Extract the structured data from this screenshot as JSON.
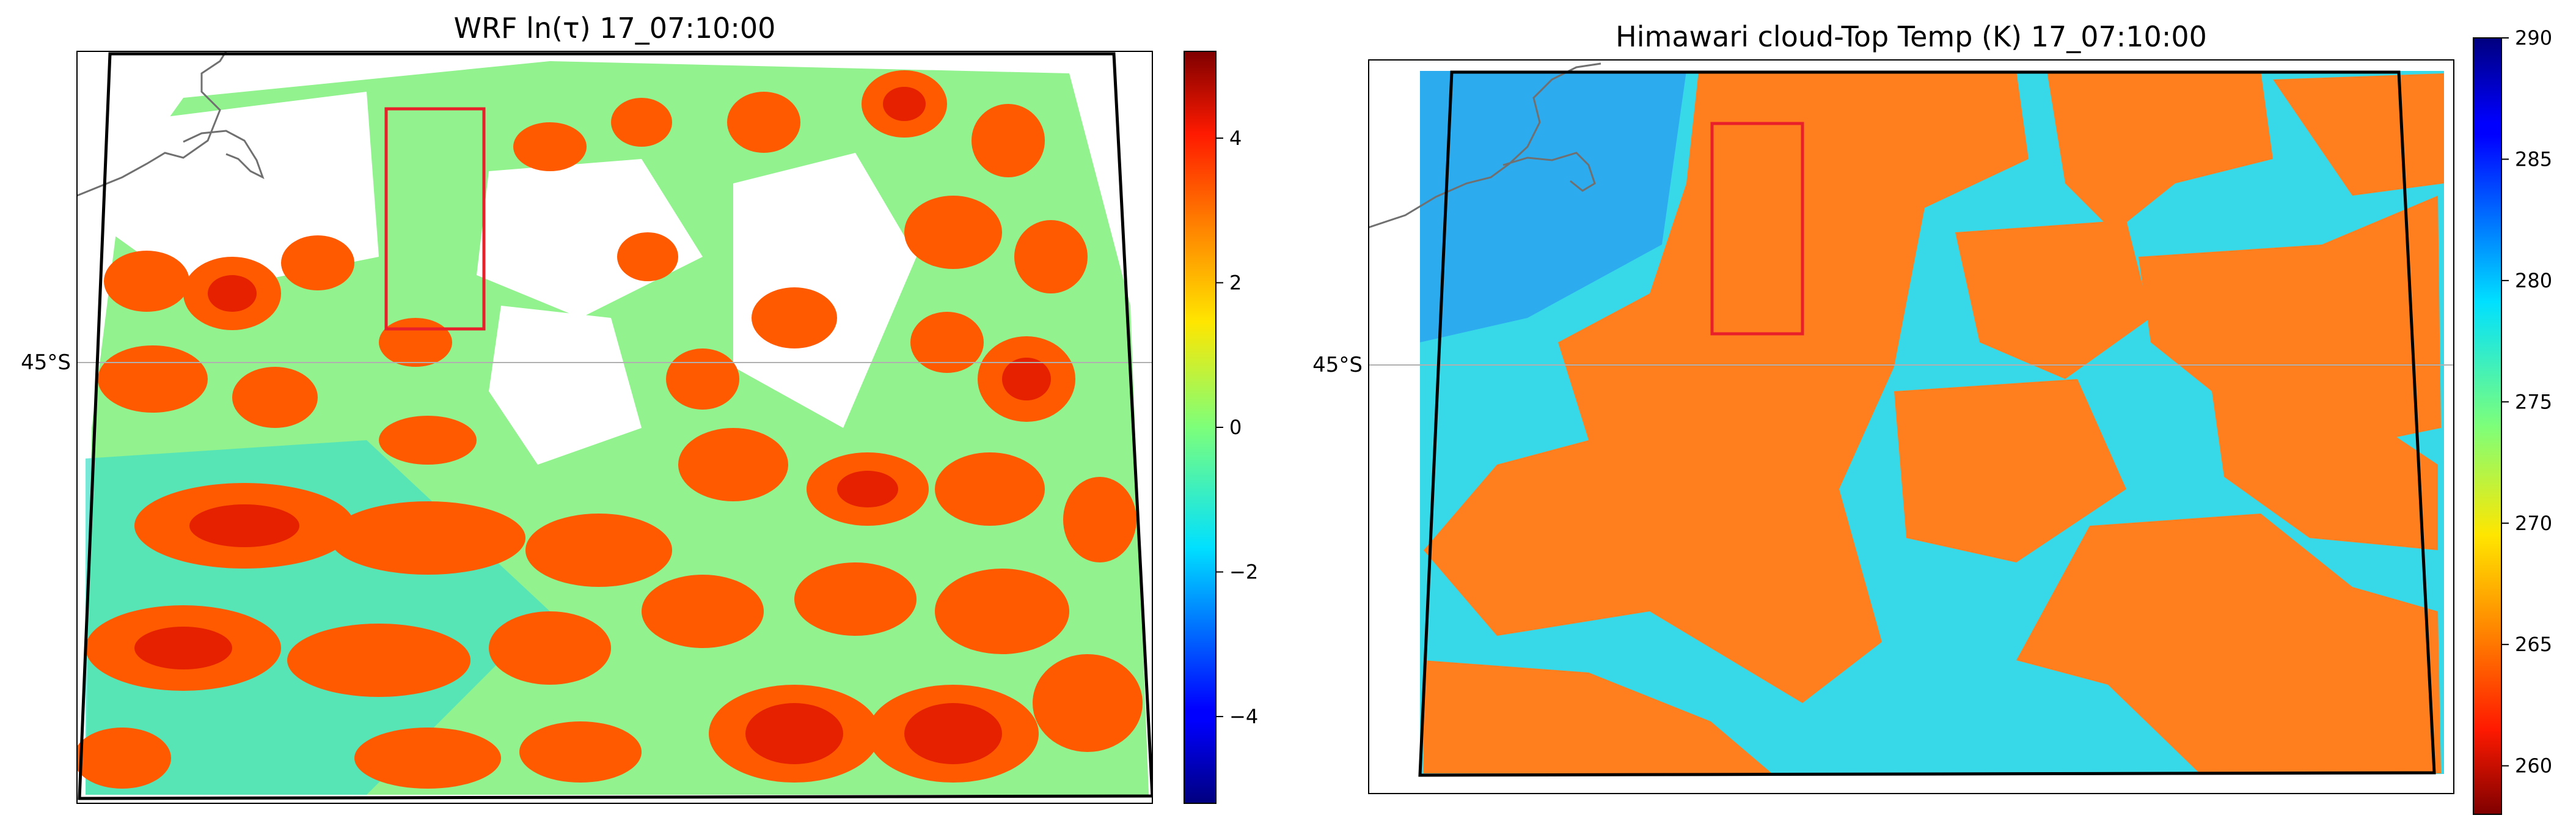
{
  "chart_data": [
    {
      "type": "heatmap",
      "title": "WRF ln(τ) 17_07:10:00",
      "colormap": "jet",
      "colorbar": {
        "range": [
          -5.2,
          5.2
        ],
        "ticks": [
          -4,
          -2,
          0,
          2,
          4
        ],
        "tick_labels": [
          "−4",
          "−2",
          "0",
          "2",
          "4"
        ]
      },
      "latitude_label": "45°S",
      "highlight_box_color": "#e8202a",
      "background": "white (no cloud)"
    },
    {
      "type": "heatmap",
      "title": "Himawari cloud-Top Temp (K) 17_07:10:00",
      "colormap": "jet (reversed)",
      "colorbar": {
        "range": [
          258,
          290
        ],
        "ticks": [
          260,
          265,
          270,
          275,
          280,
          285,
          290
        ],
        "tick_labels": [
          "260",
          "265",
          "270",
          "275",
          "280",
          "285",
          "290"
        ]
      },
      "latitude_label": "45°S",
      "highlight_box_color": "#e8202a"
    }
  ]
}
